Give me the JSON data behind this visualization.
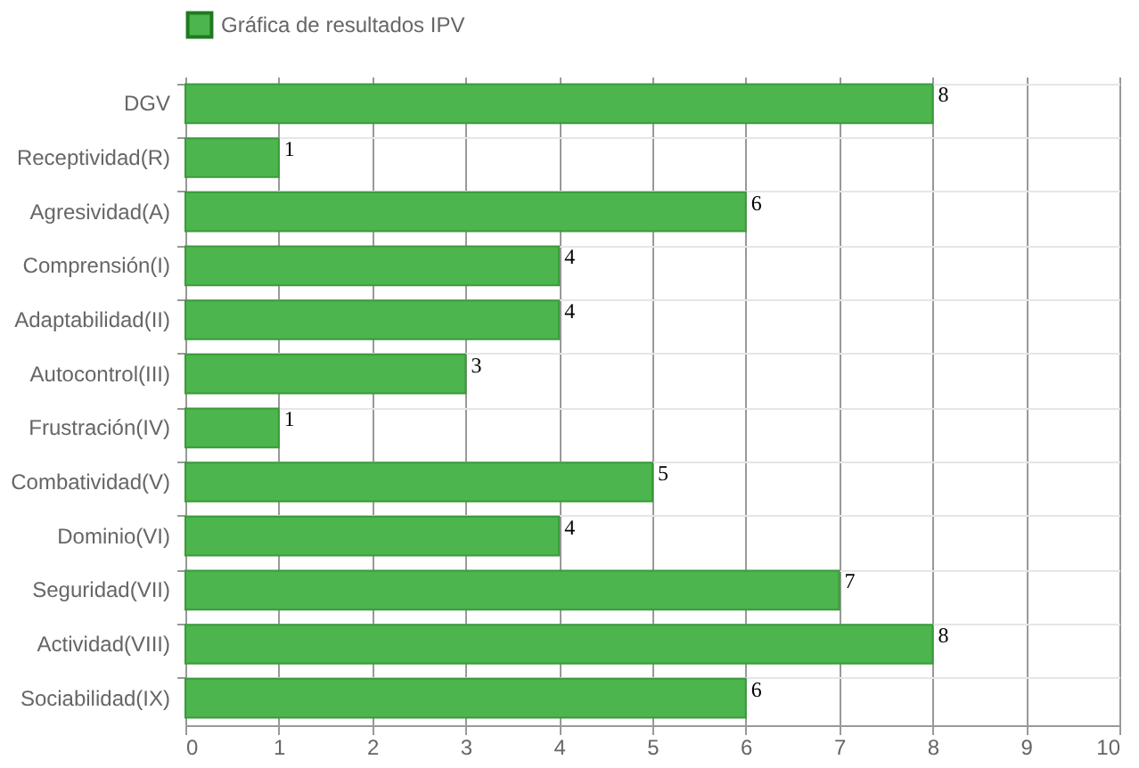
{
  "chart_data": {
    "type": "bar",
    "orientation": "horizontal",
    "categories": [
      "DGV",
      "Receptividad(R)",
      "Agresividad(A)",
      "Comprensión(I)",
      "Adaptabilidad(II)",
      "Autocontrol(III)",
      "Frustración(IV)",
      "Combatividad(V)",
      "Dominio(VI)",
      "Seguridad(VII)",
      "Actividad(VIII)",
      "Sociabilidad(IX)"
    ],
    "series": [
      {
        "name": "Gráfica de resultados IPV",
        "color": "#4db54d",
        "values": [
          8,
          1,
          6,
          4,
          4,
          3,
          1,
          5,
          4,
          7,
          8,
          6
        ]
      }
    ],
    "xlim": [
      0,
      10
    ],
    "xticks": [
      0,
      1,
      2,
      3,
      4,
      5,
      6,
      7,
      8,
      9,
      10
    ],
    "grid": true,
    "legend": "top",
    "data_labels": true
  }
}
